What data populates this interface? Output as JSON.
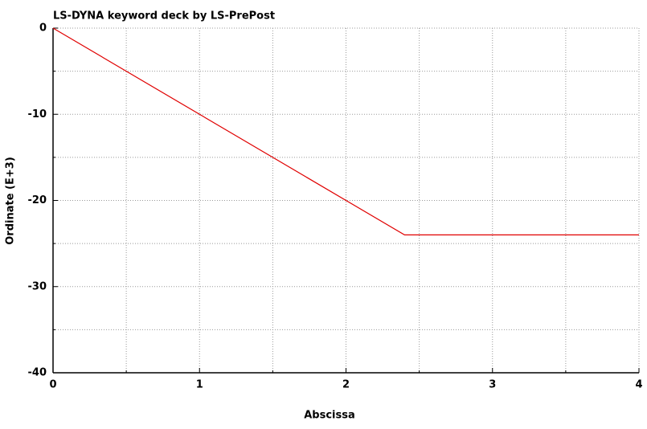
{
  "chart_data": {
    "type": "line",
    "title": "LS-DYNA keyword deck by LS-PrePost",
    "x_label": "Abscissa",
    "y_label": "Ordinate (E+3)",
    "x": [
      0,
      2.4,
      4
    ],
    "series": [
      {
        "color": "#e00000",
        "values": [
          0,
          -24,
          -24
        ]
      }
    ],
    "xlim": [
      0,
      4
    ],
    "ylim": [
      -40,
      0
    ],
    "xticks": [
      0,
      1,
      2,
      3,
      4
    ],
    "yticks": [
      0,
      -10,
      -20,
      -30,
      -40
    ],
    "x_minor_ticks": [
      0.5,
      1.5,
      2.5,
      3.5
    ],
    "y_minor_ticks": [
      -5,
      -15,
      -25,
      -35
    ],
    "grid": true
  }
}
